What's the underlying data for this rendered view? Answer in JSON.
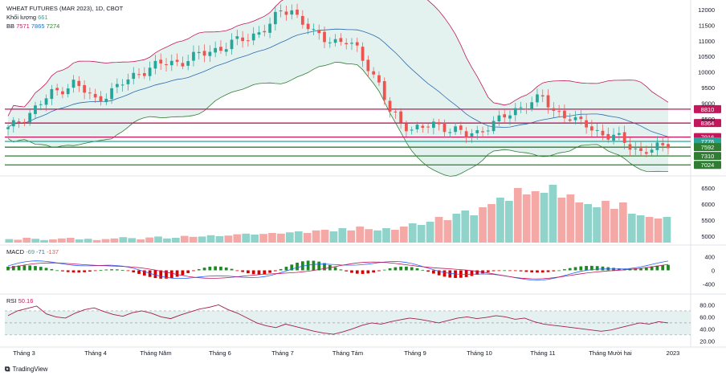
{
  "header": {
    "symbol": "WHEAT FUTURES (MAR 2023), 1D, CBOT",
    "volume_label": "Khối lượng",
    "volume_value": "661",
    "bb_label": "BB",
    "bb_values": [
      "7571",
      "7865",
      "7274"
    ],
    "macd_label": "MACD",
    "macd_values": [
      "-69",
      "-71",
      "-137"
    ],
    "rsi_label": "RSI",
    "rsi_value": "50.16",
    "footer_brand": "TradingView"
  },
  "chart_data": [
    {
      "type": "candlestick",
      "title": "WHEAT FUTURES (MAR 2023), 1D, CBOT",
      "x_labels": [
        "Tháng 3",
        "Tháng 4",
        "Tháng Năm",
        "Tháng 6",
        "Tháng 7",
        "Tháng Tám",
        "Tháng 9",
        "Tháng 10",
        "Tháng 11",
        "Tháng Mười hai",
        "2023"
      ],
      "y_ticks": [
        "12000",
        "11500",
        "11000",
        "10500",
        "10000",
        "9500",
        "9000",
        "8500"
      ],
      "ylim": [
        6850,
        12050
      ],
      "close_path": [
        [
          0,
          8150
        ],
        [
          4,
          8700
        ],
        [
          8,
          9300
        ],
        [
          12,
          9650
        ],
        [
          16,
          9100
        ],
        [
          20,
          9500
        ],
        [
          24,
          10000
        ],
        [
          28,
          10250
        ],
        [
          32,
          10350
        ],
        [
          36,
          10600
        ],
        [
          40,
          10850
        ],
        [
          44,
          11100
        ],
        [
          48,
          11500
        ],
        [
          50,
          11950
        ],
        [
          52,
          12000
        ],
        [
          54,
          11600
        ],
        [
          56,
          11200
        ],
        [
          58,
          11100
        ],
        [
          60,
          11000
        ],
        [
          62,
          10950
        ],
        [
          64,
          10700
        ],
        [
          66,
          10200
        ],
        [
          68,
          9600
        ],
        [
          70,
          8700
        ],
        [
          72,
          8400
        ],
        [
          74,
          8200
        ],
        [
          76,
          8200
        ],
        [
          78,
          8300
        ],
        [
          80,
          8250
        ],
        [
          82,
          8150
        ],
        [
          84,
          7950
        ],
        [
          86,
          8050
        ],
        [
          88,
          8300
        ],
        [
          90,
          8450
        ],
        [
          92,
          8650
        ],
        [
          94,
          8900
        ],
        [
          96,
          9050
        ],
        [
          98,
          9150
        ],
        [
          100,
          8750
        ],
        [
          102,
          8650
        ],
        [
          104,
          8400
        ],
        [
          106,
          8300
        ],
        [
          108,
          8100
        ],
        [
          110,
          7950
        ],
        [
          112,
          7850
        ],
        [
          114,
          7650
        ],
        [
          116,
          7450
        ],
        [
          118,
          7500
        ],
        [
          120,
          7600
        ],
        [
          121,
          7720
        ]
      ],
      "horizontal_levels": [
        {
          "value": "8810",
          "color": "#c2185b"
        },
        {
          "value": "8364",
          "color": "#c2185b"
        },
        {
          "value": "7916",
          "color": "#c2185b"
        },
        {
          "value": "7776",
          "color": "#26a69a"
        },
        {
          "value": "7592",
          "color": "#2e7d32"
        },
        {
          "value": "7310",
          "color": "#2e7d32"
        },
        {
          "value": "7024",
          "color": "#2e7d32"
        }
      ],
      "bollinger": {
        "upper_color": "#c2185b",
        "mid_color": "#2b6cb0",
        "lower_color": "#2e7d32"
      }
    },
    {
      "type": "bar",
      "title": "Khối lượng",
      "y_ticks": [
        "6500",
        "6000",
        "5500",
        "5000"
      ],
      "ylim": [
        4800,
        6700
      ],
      "values": [
        4910,
        4890,
        4950,
        4920,
        4880,
        4900,
        4930,
        4950,
        4900,
        4920,
        4880,
        4910,
        4930,
        4970,
        4940,
        4900,
        4960,
        4990,
        4930,
        4950,
        5010,
        4980,
        4990,
        5030,
        5000,
        5020,
        5060,
        5080,
        5050,
        5070,
        5100,
        5080,
        5120,
        5150,
        5100,
        5180,
        5200,
        5150,
        5250,
        5180,
        5300,
        5220,
        5180,
        5250,
        5200,
        5300,
        5400,
        5350,
        5450,
        5600,
        5500,
        5700,
        5800,
        5650,
        5900,
        6000,
        6200,
        6100,
        6500,
        6300,
        6400,
        6350,
        6600,
        6200,
        6300,
        6050,
        6000,
        5900,
        6100,
        5850,
        6050,
        5700,
        5650,
        5600,
        5550,
        5600
      ]
    },
    {
      "type": "line",
      "title": "MACD",
      "y_ticks": [
        "400",
        "0",
        "-400"
      ],
      "ylim": [
        -600,
        600
      ]
    },
    {
      "type": "line",
      "title": "RSI",
      "y_ticks": [
        "80.00",
        "60.00",
        "40.00",
        "20.00"
      ],
      "ylim": [
        15,
        90
      ],
      "band": [
        30,
        70
      ],
      "values": [
        62,
        70,
        74,
        78,
        65,
        60,
        58,
        66,
        72,
        75,
        69,
        64,
        61,
        67,
        70,
        66,
        60,
        57,
        63,
        68,
        73,
        76,
        80,
        72,
        66,
        58,
        50,
        45,
        42,
        48,
        44,
        40,
        36,
        33,
        31,
        35,
        40,
        46,
        50,
        48,
        52,
        55,
        58,
        56,
        53,
        50,
        54,
        58,
        60,
        57,
        59,
        62,
        60,
        56,
        58,
        52,
        48,
        46,
        44,
        42,
        40,
        38,
        36,
        38,
        42,
        46,
        50,
        48,
        52,
        50
      ],
      "current": 50.16
    }
  ],
  "colors": {
    "up": "#26a69a",
    "down": "#ef5350",
    "bb_fill": "#e3f1ef",
    "rsi_line": "#a31f4a",
    "rsi_band": "#e4f1f0",
    "macd": "#2962ff",
    "signal": "#c2185b",
    "hist_up": "#1b8a20",
    "hist_down": "#d50000"
  }
}
